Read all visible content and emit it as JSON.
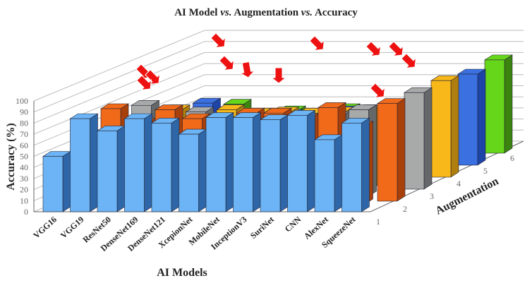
{
  "chart_data": {
    "type": "bar",
    "subtype": "3d-bar",
    "title_parts": [
      "AI Model ",
      "vs.",
      " Augmentation ",
      "vs.",
      " Accuracy"
    ],
    "title": "AI Model vs. Augmentation vs. Accuracy",
    "xlabel": "AI Models",
    "ylabel": "Accuracy (%)",
    "zlabel": "Augmentation",
    "ylim": [
      0,
      100
    ],
    "yticks": [
      "0",
      "10",
      "20",
      "30",
      "40",
      "50",
      "60",
      "70",
      "80",
      "90",
      "100"
    ],
    "zticks": [
      "1",
      "2",
      "3",
      "4",
      "5",
      "6"
    ],
    "categories": [
      "VGG16",
      "VGG19",
      "ResNet50",
      "DenseNet169",
      "DenseNet121",
      "XceptionNet",
      "MobileNet",
      "InceptionV3",
      "SuriNet",
      "CNN",
      "AlexNet",
      "SqueezeNet",
      ""
    ],
    "category_labels": [
      "VGG16",
      "VGG19",
      "ResNet50",
      "DenseNet169",
      "DenseNet121",
      "XcepionNet",
      "MobileNet",
      "InceptionV3",
      "SuriNet",
      "CNN",
      "AlexNet",
      "SqueezeNet",
      ""
    ],
    "grid": true,
    "series": [
      {
        "augmentation": "1",
        "color": "#6cb4f5",
        "side": "#2e66a8",
        "values": [
          50,
          84,
          73,
          84,
          80,
          70,
          85,
          85,
          83,
          87,
          65,
          80,
          null
        ]
      },
      {
        "augmentation": "2",
        "color": "#f06a1a",
        "side": "#a8400c",
        "values": [
          null,
          null,
          93,
          80,
          92,
          84,
          80,
          89,
          89,
          84,
          94,
          77,
          89
        ]
      },
      {
        "augmentation": "3",
        "color": "#a8aaaa",
        "side": "#646868",
        "values": [
          null,
          null,
          null,
          96,
          null,
          90,
          null,
          null,
          null,
          84,
          86,
          92,
          88
        ]
      },
      {
        "augmentation": "4",
        "color": "#f8b81a",
        "side": "#b07e0e",
        "values": [
          null,
          null,
          null,
          null,
          92,
          null,
          92,
          89,
          90,
          89,
          90,
          91,
          88
        ]
      },
      {
        "augmentation": "5",
        "color": "#3a70e0",
        "side": "#1e44a8",
        "values": [
          null,
          null,
          null,
          null,
          null,
          98,
          null,
          89,
          88,
          89,
          91,
          92,
          83
        ]
      },
      {
        "augmentation": "6",
        "color": "#66d61a",
        "side": "#3c8410",
        "values": [
          null,
          null,
          null,
          null,
          null,
          null,
          97,
          null,
          91,
          89,
          93,
          92,
          85
        ]
      }
    ],
    "annotations": "red arrows marking highest accuracy bars"
  }
}
